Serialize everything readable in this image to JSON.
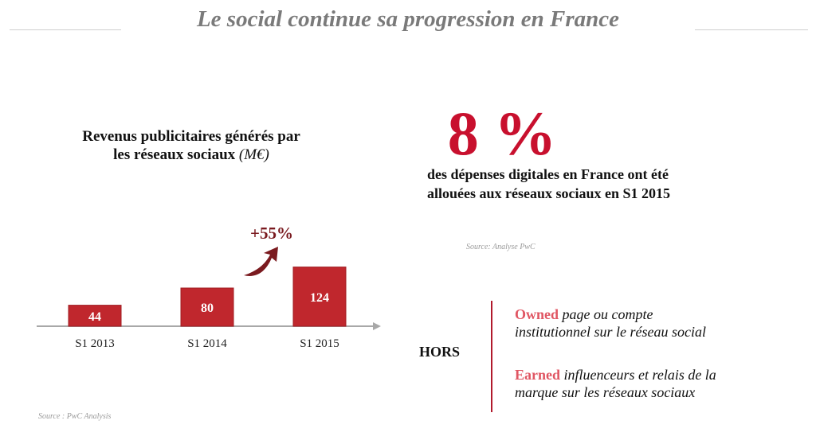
{
  "header": {
    "title": "Le social continue sa progression en France"
  },
  "chart_data": {
    "type": "bar",
    "title": "Revenus publicitaires générés par les réseaux sociaux",
    "title_line1": "Revenus publicitaires générés par",
    "title_line2": "les réseaux sociaux",
    "unit": "(M€)",
    "categories": [
      "S1 2013",
      "S1 2014",
      "S1 2015"
    ],
    "values": [
      44,
      80,
      124
    ],
    "value_labels": [
      "44",
      "80",
      "124"
    ],
    "growth_annotation": "+55%",
    "source": "Source : PwC Analysis",
    "colors": {
      "bar": "#c0272d",
      "bar_border": "#a01d22",
      "arrow": "#7a1a1f",
      "axis": "#a8a8a8"
    }
  },
  "stat": {
    "value": "8 %",
    "description_line1": "des dépenses digitales en France ont été",
    "description_line2": "allouées aux réseaux sociaux en S1 2015",
    "source": "Source: Analyse PwC",
    "color": "#c8102e"
  },
  "exclusions": {
    "label": "HORS",
    "owned_keyword": "Owned",
    "owned_line1": " page ou compte",
    "owned_line2": "institutionnel sur le réseau social",
    "earned_keyword": "Earned",
    "earned_line1": " influenceurs et relais de la",
    "earned_line2": "marque sur les réseaux sociaux",
    "color": "#e05663"
  }
}
